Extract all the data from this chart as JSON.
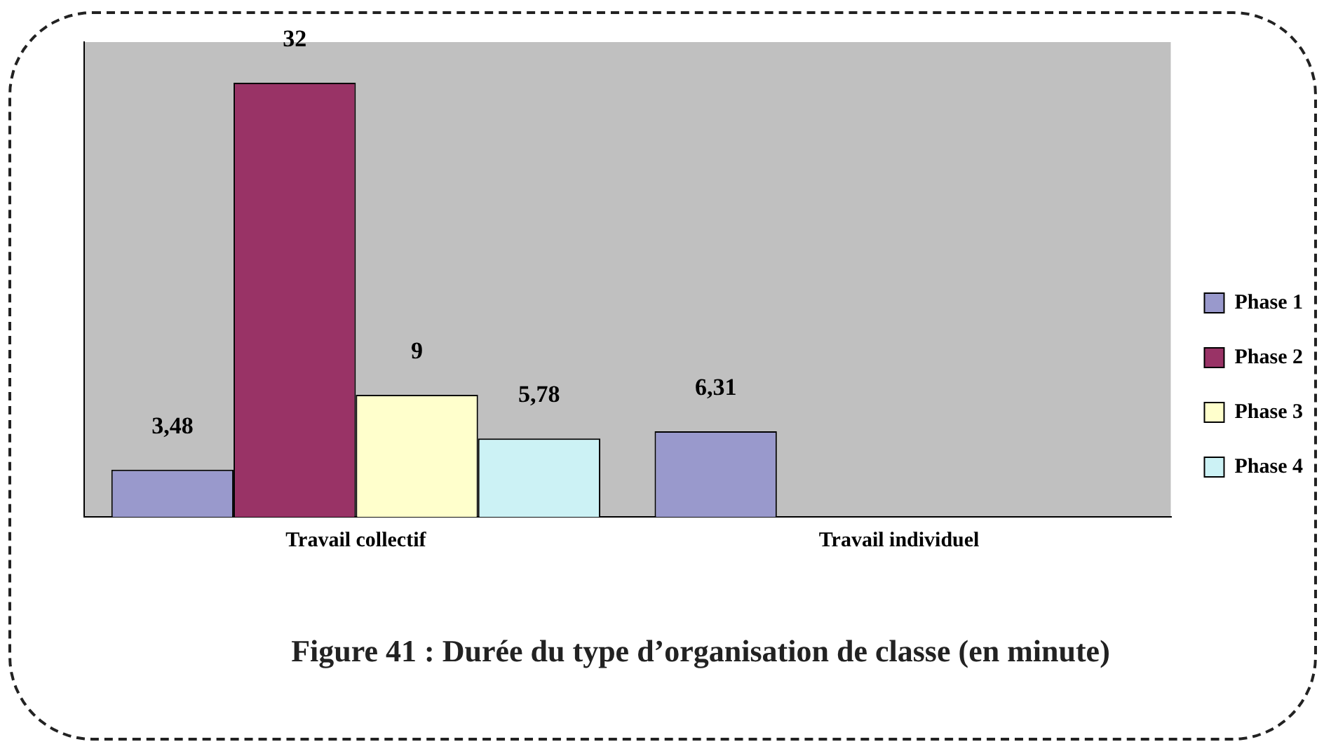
{
  "chart_data": {
    "type": "bar",
    "title": "Figure 41 : Durée du type d’organisation de classe (en minute)",
    "categories": [
      "Travail collectif",
      "Travail individuel"
    ],
    "series": [
      {
        "name": "Phase 1",
        "color": "#9999cc",
        "values": [
          3.48,
          6.31
        ],
        "value_labels": [
          "3,48",
          "6,31"
        ]
      },
      {
        "name": "Phase 2",
        "color": "#993366",
        "values": [
          32,
          null
        ],
        "value_labels": [
          "32",
          null
        ]
      },
      {
        "name": "Phase 3",
        "color": "#ffffcc",
        "values": [
          9,
          null
        ],
        "value_labels": [
          "9",
          null
        ]
      },
      {
        "name": "Phase 4",
        "color": "#ccf2f5",
        "values": [
          5.78,
          null
        ],
        "value_labels": [
          "5,78",
          null
        ]
      }
    ],
    "data_labels": false,
    "grid": false,
    "legend": "right",
    "tick_labels": "x"
  }
}
